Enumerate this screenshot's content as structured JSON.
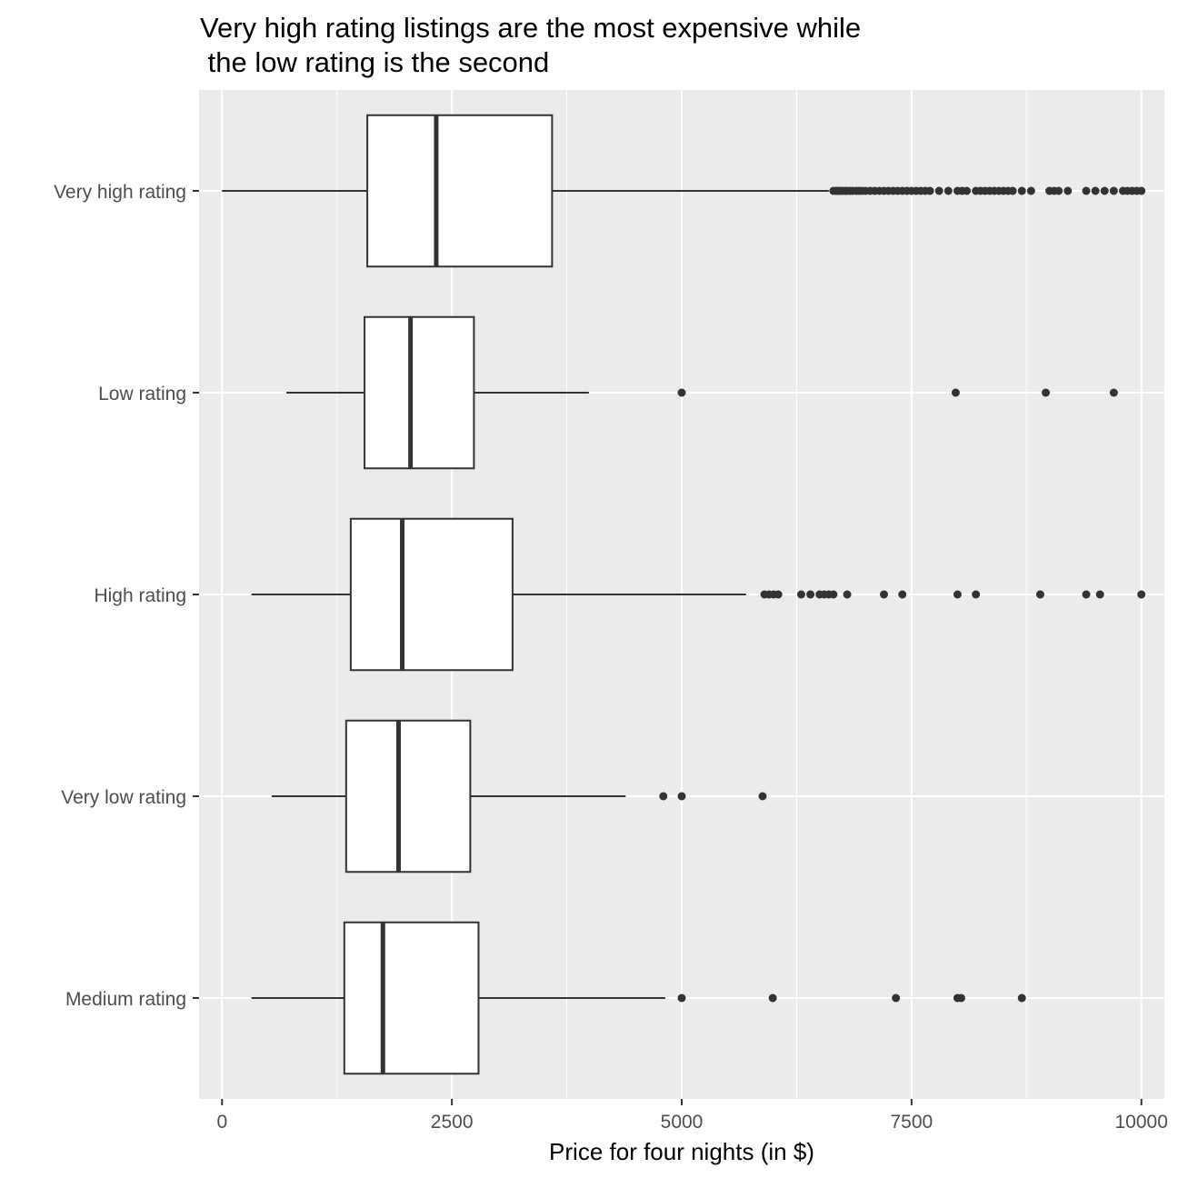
{
  "chart_data": {
    "type": "boxplot",
    "orientation": "horizontal",
    "title_lines": [
      "Very high rating listings are the most expensive while",
      " the low rating is the second"
    ],
    "xlabel": "Price for four nights (in $)",
    "ylabel": "",
    "xlim": [
      -250,
      10250
    ],
    "xticks": [
      0,
      2500,
      5000,
      7500,
      10000
    ],
    "xtick_labels": [
      "0",
      "2500",
      "5000",
      "7500",
      "10000"
    ],
    "grid": true,
    "legend": "none",
    "colors": {
      "panel_bg": "#ebebeb",
      "grid": "#ffffff",
      "box_fill": "#ffffff",
      "stroke": "#333333"
    },
    "categories": [
      "Very high rating",
      "Low rating",
      "High rating",
      "Very low rating",
      "Medium rating"
    ],
    "boxes": [
      {
        "category": "Very high rating",
        "whisker_low": 0,
        "q1": 1580,
        "median": 2330,
        "q3": 3590,
        "whisker_high": 6600,
        "outliers": [
          6650,
          6680,
          6700,
          6720,
          6750,
          6780,
          6800,
          6830,
          6860,
          6900,
          6930,
          6960,
          7000,
          7050,
          7100,
          7150,
          7200,
          7250,
          7300,
          7350,
          7400,
          7450,
          7500,
          7550,
          7600,
          7650,
          7700,
          7800,
          7900,
          8000,
          8050,
          8100,
          8200,
          8250,
          8300,
          8350,
          8400,
          8450,
          8500,
          8550,
          8600,
          8700,
          8800,
          9000,
          9050,
          9100,
          9200,
          9400,
          9500,
          9600,
          9700,
          9800,
          9850,
          9900,
          9950,
          10000
        ]
      },
      {
        "category": "Low rating",
        "whisker_low": 700,
        "q1": 1550,
        "median": 2050,
        "q3": 2740,
        "whisker_high": 3990,
        "outliers": [
          5000,
          7980,
          8960,
          9700
        ]
      },
      {
        "category": "High rating",
        "whisker_low": 320,
        "q1": 1400,
        "median": 1960,
        "q3": 3160,
        "whisker_high": 5700,
        "outliers": [
          5900,
          5950,
          6000,
          6050,
          6300,
          6400,
          6500,
          6550,
          6600,
          6650,
          6800,
          7200,
          7400,
          8000,
          8200,
          8900,
          9400,
          9550,
          10000
        ]
      },
      {
        "category": "Very low rating",
        "whisker_low": 540,
        "q1": 1350,
        "median": 1920,
        "q3": 2700,
        "whisker_high": 4390,
        "outliers": [
          4800,
          5000,
          5880
        ]
      },
      {
        "category": "Medium rating",
        "whisker_low": 320,
        "q1": 1330,
        "median": 1750,
        "q3": 2790,
        "whisker_high": 4820,
        "outliers": [
          5000,
          5990,
          7330,
          8000,
          8040,
          8700
        ]
      }
    ]
  }
}
